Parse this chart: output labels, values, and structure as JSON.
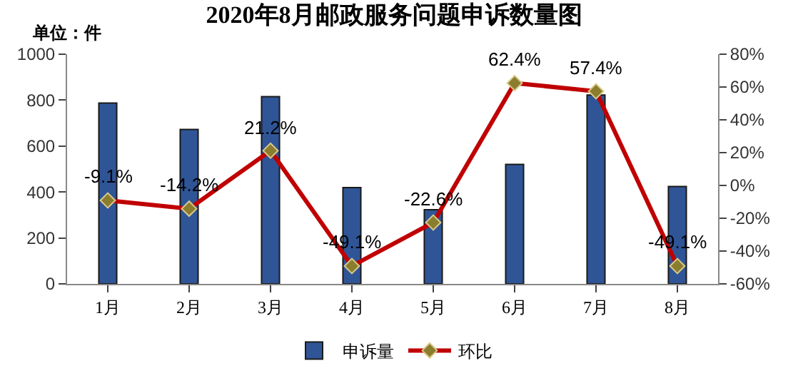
{
  "chart_data": {
    "type": "bar",
    "title": "2020年8月邮政服务问题申诉数量图",
    "annotations": [
      "单位：件"
    ],
    "categories": [
      "1月",
      "2月",
      "3月",
      "4月",
      "5月",
      "6月",
      "7月",
      "8月"
    ],
    "series": [
      {
        "name": "申诉量",
        "color": "#2f5597",
        "values": [
          787,
          672,
          815,
          419,
          323,
          520,
          822,
          424
        ]
      },
      {
        "name": "环比",
        "type": "line",
        "axis": "y2",
        "color": "#c00000",
        "marker": "diamond",
        "values": [
          -9.1,
          -14.2,
          21.2,
          -49.1,
          -22.6,
          62.4,
          57.4,
          -49.1
        ],
        "value_labels": [
          "-9.1%",
          "-14.2%",
          "21.2%",
          "-49.1%",
          "-22.6%",
          "62.4%",
          "57.4%",
          "-49.1%"
        ]
      }
    ],
    "ylim": [
      0,
      1000
    ],
    "yticks": [
      0,
      200,
      400,
      600,
      800,
      1000
    ],
    "y2lim": [
      -60,
      80
    ],
    "y2ticks": [
      {
        "value": -60,
        "label": "-60%"
      },
      {
        "value": -40,
        "label": "-40%"
      },
      {
        "value": -20,
        "label": "-20%"
      },
      {
        "value": 0,
        "label": "0%"
      },
      {
        "value": 20,
        "label": "20%"
      },
      {
        "value": 40,
        "label": "40%"
      },
      {
        "value": 60,
        "label": "60%"
      },
      {
        "value": 80,
        "label": "80%"
      }
    ],
    "legend": "bottom"
  }
}
